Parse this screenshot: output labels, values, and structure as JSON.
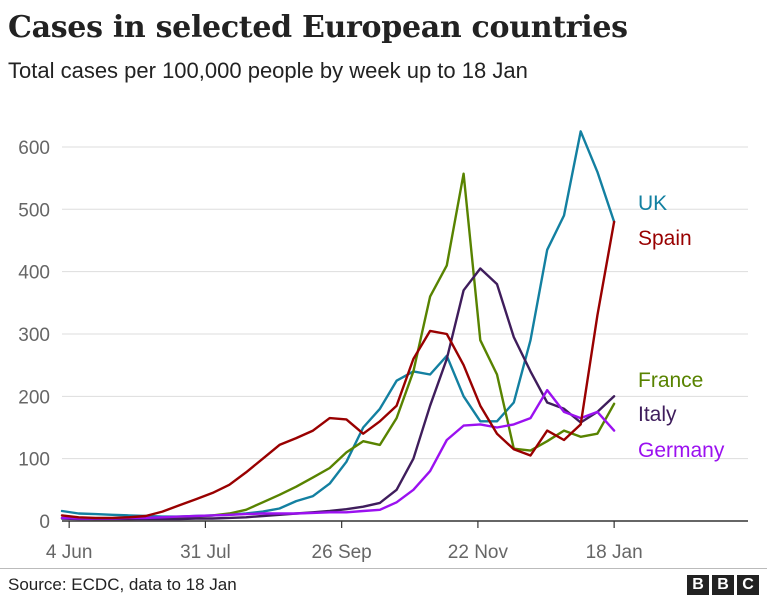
{
  "header": {
    "title": "Cases in selected European countries",
    "subtitle": "Total cases per 100,000 people by week up to 18 Jan"
  },
  "footer": {
    "source": "Source: ECDC, data to 18 Jan",
    "logo_letters": [
      "B",
      "B",
      "C"
    ]
  },
  "chart_data": {
    "type": "line",
    "title": "Cases in selected European countries",
    "subtitle": "Total cases per 100,000 people by week up to 18 Jan",
    "xlabel": "",
    "ylabel": "",
    "ylim": [
      0,
      640
    ],
    "yticks": [
      0,
      100,
      200,
      300,
      400,
      500,
      600
    ],
    "xlim": [
      "2020-06-01",
      "2021-03-15"
    ],
    "xticks": [
      {
        "date": "2020-06-04",
        "label": "4 Jun"
      },
      {
        "date": "2020-07-31",
        "label": "31 Jul"
      },
      {
        "date": "2020-09-26",
        "label": "26 Sep"
      },
      {
        "date": "2020-11-22",
        "label": "22 Nov"
      },
      {
        "date": "2021-01-18",
        "label": "18 Jan"
      }
    ],
    "grid": true,
    "legend": "direct labels at right end of lines",
    "x": [
      "2020-06-01",
      "2020-06-08",
      "2020-06-15",
      "2020-06-22",
      "2020-06-29",
      "2020-07-06",
      "2020-07-13",
      "2020-07-20",
      "2020-07-27",
      "2020-08-03",
      "2020-08-10",
      "2020-08-17",
      "2020-08-24",
      "2020-08-31",
      "2020-09-07",
      "2020-09-14",
      "2020-09-21",
      "2020-09-28",
      "2020-10-05",
      "2020-10-12",
      "2020-10-19",
      "2020-10-26",
      "2020-11-02",
      "2020-11-09",
      "2020-11-16",
      "2020-11-23",
      "2020-11-30",
      "2020-12-07",
      "2020-12-14",
      "2020-12-21",
      "2020-12-28",
      "2021-01-04",
      "2021-01-11",
      "2021-01-18"
    ],
    "series": [
      {
        "name": "UK",
        "color": "#1380a1",
        "values": [
          16,
          12,
          11,
          10,
          9,
          8,
          7,
          7,
          8,
          9,
          10,
          12,
          15,
          20,
          32,
          40,
          60,
          95,
          150,
          180,
          225,
          240,
          235,
          265,
          200,
          160,
          160,
          190,
          290,
          435,
          490,
          625,
          560,
          480
        ]
      },
      {
        "name": "Spain",
        "color": "#990000",
        "values": [
          9,
          6,
          5,
          5,
          6,
          8,
          15,
          25,
          35,
          45,
          58,
          78,
          100,
          122,
          133,
          145,
          165,
          163,
          140,
          160,
          185,
          260,
          305,
          300,
          250,
          185,
          140,
          115,
          105,
          145,
          130,
          155,
          330,
          480
        ]
      },
      {
        "name": "France",
        "color": "#588300",
        "values": [
          5,
          4,
          3,
          3,
          3,
          4,
          5,
          6,
          7,
          9,
          12,
          18,
          30,
          42,
          55,
          70,
          85,
          110,
          128,
          122,
          165,
          240,
          360,
          410,
          557,
          290,
          235,
          116,
          113,
          128,
          145,
          135,
          140,
          188
        ]
      },
      {
        "name": "Italy",
        "color": "#3f1d5c",
        "values": [
          4,
          3,
          3,
          3,
          3,
          3,
          3,
          3,
          4,
          4,
          5,
          6,
          8,
          10,
          12,
          14,
          16,
          19,
          23,
          29,
          50,
          100,
          185,
          260,
          370,
          405,
          380,
          295,
          240,
          190,
          180,
          158,
          175,
          200
        ]
      },
      {
        "name": "Germany",
        "color": "#9b11f0",
        "values": [
          5,
          4,
          4,
          4,
          5,
          5,
          6,
          7,
          8,
          9,
          10,
          11,
          12,
          12,
          12,
          13,
          14,
          14,
          16,
          18,
          30,
          50,
          80,
          130,
          153,
          155,
          150,
          155,
          165,
          210,
          175,
          165,
          175,
          145
        ]
      }
    ],
    "labels": [
      {
        "name": "UK",
        "text": "UK",
        "color": "#1380a1"
      },
      {
        "name": "Spain",
        "text": "Spain",
        "color": "#990000"
      },
      {
        "name": "France",
        "text": "France",
        "color": "#588300"
      },
      {
        "name": "Italy",
        "text": "Italy",
        "color": "#3f1d5c"
      },
      {
        "name": "Germany",
        "text": "Germany",
        "color": "#9b11f0"
      }
    ]
  }
}
